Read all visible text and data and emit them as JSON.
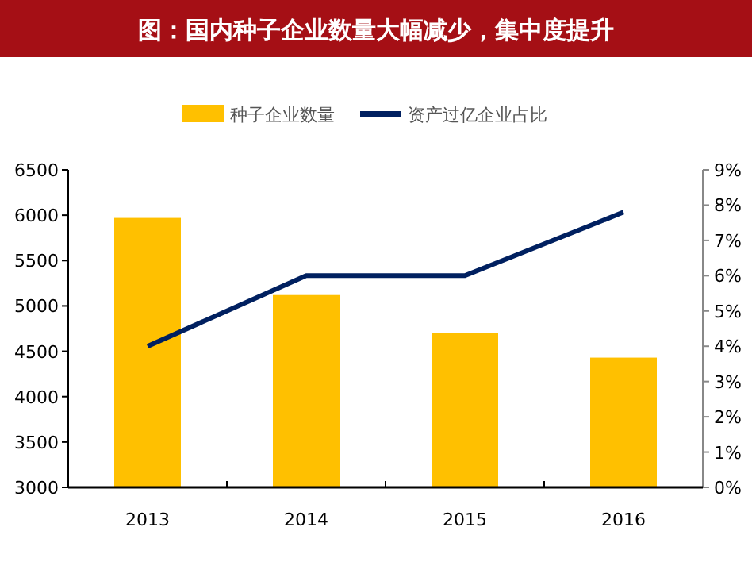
{
  "chart_data": {
    "type": "bar",
    "title": "图：国内种子企业数量大幅减少，集中度提升",
    "categories": [
      "2013",
      "2014",
      "2015",
      "2016"
    ],
    "series": [
      {
        "name": "种子企业数量",
        "color": "#ffc000",
        "values": [
          5970,
          5120,
          4700,
          4430
        ]
      },
      {
        "name": "资产过亿企业占比",
        "type": "line",
        "axis": "y2",
        "color": "#002060",
        "values": [
          4.0,
          6.0,
          6.0,
          7.8
        ]
      }
    ],
    "ylim": [
      3000,
      6500
    ],
    "yticks": [
      3000,
      3500,
      4000,
      4500,
      5000,
      5500,
      6000,
      6500
    ],
    "y2lim": [
      0,
      9
    ],
    "y2ticks": [
      {
        "value": 0,
        "label": "0%"
      },
      {
        "value": 1,
        "label": "1%"
      },
      {
        "value": 2,
        "label": "2%"
      },
      {
        "value": 3,
        "label": "3%"
      },
      {
        "value": 4,
        "label": "4%"
      },
      {
        "value": 5,
        "label": "5%"
      },
      {
        "value": 6,
        "label": "6%"
      },
      {
        "value": 7,
        "label": "7%"
      },
      {
        "value": 8,
        "label": "8%"
      },
      {
        "value": 9,
        "label": "9%"
      }
    ],
    "legend": "top",
    "grid": false,
    "marker": "none"
  }
}
